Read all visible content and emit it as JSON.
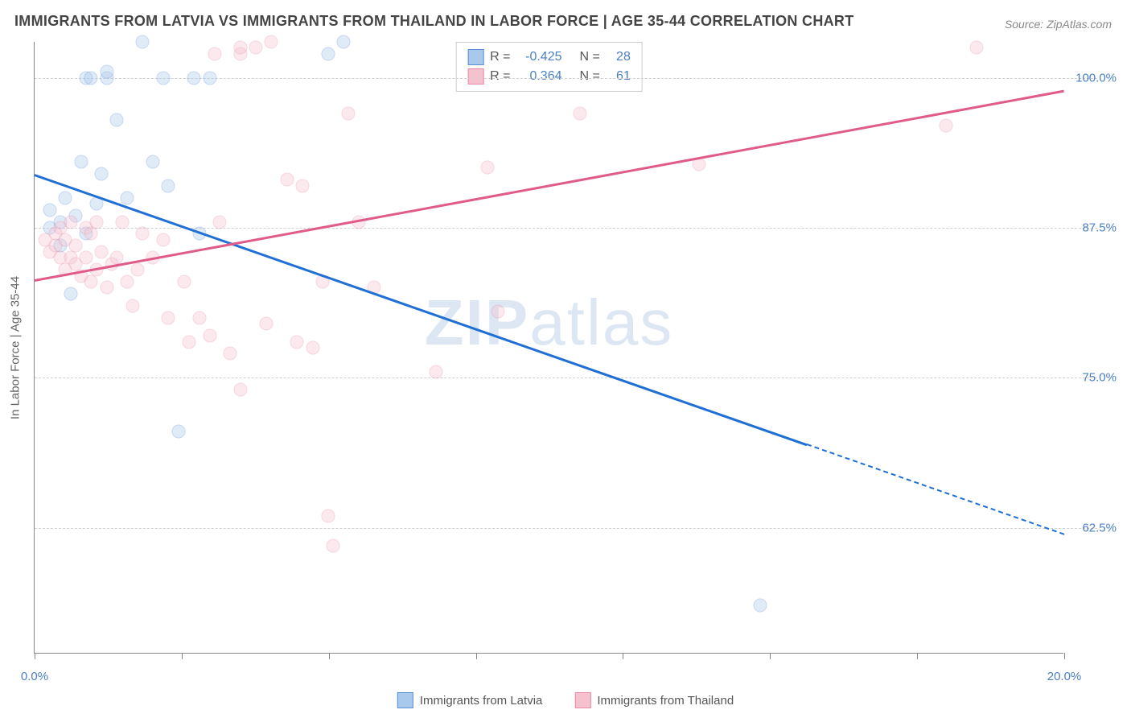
{
  "title": "IMMIGRANTS FROM LATVIA VS IMMIGRANTS FROM THAILAND IN LABOR FORCE | AGE 35-44 CORRELATION CHART",
  "source": "Source: ZipAtlas.com",
  "watermark_prefix": "ZIP",
  "watermark_suffix": "atlas",
  "chart": {
    "type": "scatter",
    "y_label": "In Labor Force | Age 35-44",
    "xlim": [
      0.0,
      20.0
    ],
    "ylim": [
      52.0,
      103.0
    ],
    "x_ticks": [
      0.0,
      2.857,
      5.714,
      8.571,
      11.429,
      14.286,
      17.143,
      20.0
    ],
    "x_tick_labels_shown": {
      "first": "0.0%",
      "last": "20.0%"
    },
    "y_gridlines": [
      62.5,
      75.0,
      87.5,
      100.0
    ],
    "y_tick_labels": [
      "62.5%",
      "75.0%",
      "87.5%",
      "100.0%"
    ],
    "background_color": "#ffffff",
    "grid_color": "#d0d0d0",
    "axis_color": "#888888",
    "value_label_color": "#4a7fc4",
    "axis_label_color": "#666666",
    "point_radius": 8.5,
    "point_opacity": 0.35
  },
  "series": [
    {
      "name": "Immigrants from Latvia",
      "color_fill": "#a8c8ec",
      "color_stroke": "#5b8fd4",
      "R": "-0.425",
      "N": "28",
      "trend": {
        "x1": 0.0,
        "y1": 92.0,
        "x2": 15.0,
        "y2": 69.5,
        "x2_extrapolate": 20.0,
        "y2_extrapolate": 62.0,
        "color": "#1f6fd4"
      },
      "points": [
        [
          0.3,
          87.5
        ],
        [
          0.3,
          89.0
        ],
        [
          0.5,
          86.0
        ],
        [
          0.5,
          88.0
        ],
        [
          0.6,
          90.0
        ],
        [
          0.7,
          82.0
        ],
        [
          0.8,
          88.5
        ],
        [
          0.9,
          93.0
        ],
        [
          1.0,
          87.0
        ],
        [
          1.0,
          100.0
        ],
        [
          1.1,
          100.0
        ],
        [
          1.2,
          89.5
        ],
        [
          1.3,
          92.0
        ],
        [
          1.4,
          100.0
        ],
        [
          1.4,
          100.5
        ],
        [
          1.6,
          96.5
        ],
        [
          1.8,
          90.0
        ],
        [
          2.1,
          103.0
        ],
        [
          2.3,
          93.0
        ],
        [
          2.5,
          100.0
        ],
        [
          2.6,
          91.0
        ],
        [
          2.8,
          70.5
        ],
        [
          3.1,
          100.0
        ],
        [
          3.2,
          87.0
        ],
        [
          3.4,
          100.0
        ],
        [
          5.7,
          102.0
        ],
        [
          6.0,
          103.0
        ],
        [
          14.1,
          56.0
        ]
      ]
    },
    {
      "name": "Immigrants from Thailand",
      "color_fill": "#f6c1cf",
      "color_stroke": "#e88aa6",
      "R": "0.364",
      "N": "61",
      "trend": {
        "x1": 0.0,
        "y1": 83.2,
        "x2": 20.0,
        "y2": 99.0,
        "color": "#e05b8a"
      },
      "points": [
        [
          0.2,
          86.5
        ],
        [
          0.3,
          85.5
        ],
        [
          0.4,
          86.0
        ],
        [
          0.4,
          87.0
        ],
        [
          0.5,
          85.0
        ],
        [
          0.5,
          87.5
        ],
        [
          0.6,
          84.0
        ],
        [
          0.6,
          86.5
        ],
        [
          0.7,
          85.0
        ],
        [
          0.7,
          88.0
        ],
        [
          0.8,
          84.5
        ],
        [
          0.8,
          86.0
        ],
        [
          0.9,
          83.5
        ],
        [
          1.0,
          85.0
        ],
        [
          1.0,
          87.5
        ],
        [
          1.1,
          83.0
        ],
        [
          1.1,
          87.0
        ],
        [
          1.2,
          84.0
        ],
        [
          1.2,
          88.0
        ],
        [
          1.3,
          85.5
        ],
        [
          1.4,
          82.5
        ],
        [
          1.5,
          84.5
        ],
        [
          1.6,
          85.0
        ],
        [
          1.7,
          88.0
        ],
        [
          1.8,
          83.0
        ],
        [
          1.9,
          81.0
        ],
        [
          2.0,
          84.0
        ],
        [
          2.1,
          87.0
        ],
        [
          2.3,
          85.0
        ],
        [
          2.5,
          86.5
        ],
        [
          2.6,
          80.0
        ],
        [
          2.9,
          83.0
        ],
        [
          3.0,
          78.0
        ],
        [
          3.2,
          80.0
        ],
        [
          3.4,
          78.5
        ],
        [
          3.5,
          102.0
        ],
        [
          3.6,
          88.0
        ],
        [
          3.8,
          77.0
        ],
        [
          4.0,
          102.0
        ],
        [
          4.0,
          102.5
        ],
        [
          4.0,
          74.0
        ],
        [
          4.3,
          102.5
        ],
        [
          4.5,
          79.5
        ],
        [
          4.6,
          103.0
        ],
        [
          4.9,
          91.5
        ],
        [
          5.1,
          78.0
        ],
        [
          5.2,
          91.0
        ],
        [
          5.4,
          77.5
        ],
        [
          5.6,
          83.0
        ],
        [
          5.7,
          63.5
        ],
        [
          5.8,
          61.0
        ],
        [
          6.1,
          97.0
        ],
        [
          6.3,
          88.0
        ],
        [
          6.6,
          82.5
        ],
        [
          7.8,
          75.5
        ],
        [
          8.8,
          92.5
        ],
        [
          9.0,
          80.5
        ],
        [
          10.6,
          97.0
        ],
        [
          12.9,
          92.8
        ],
        [
          17.7,
          96.0
        ],
        [
          18.3,
          102.5
        ]
      ]
    }
  ],
  "legend_box": {
    "rows": [
      {
        "series_idx": 0,
        "R_label": "R =",
        "N_label": "N ="
      },
      {
        "series_idx": 1,
        "R_label": "R =",
        "N_label": "N ="
      }
    ]
  },
  "bottom_legend": [
    {
      "series_idx": 0
    },
    {
      "series_idx": 1
    }
  ]
}
